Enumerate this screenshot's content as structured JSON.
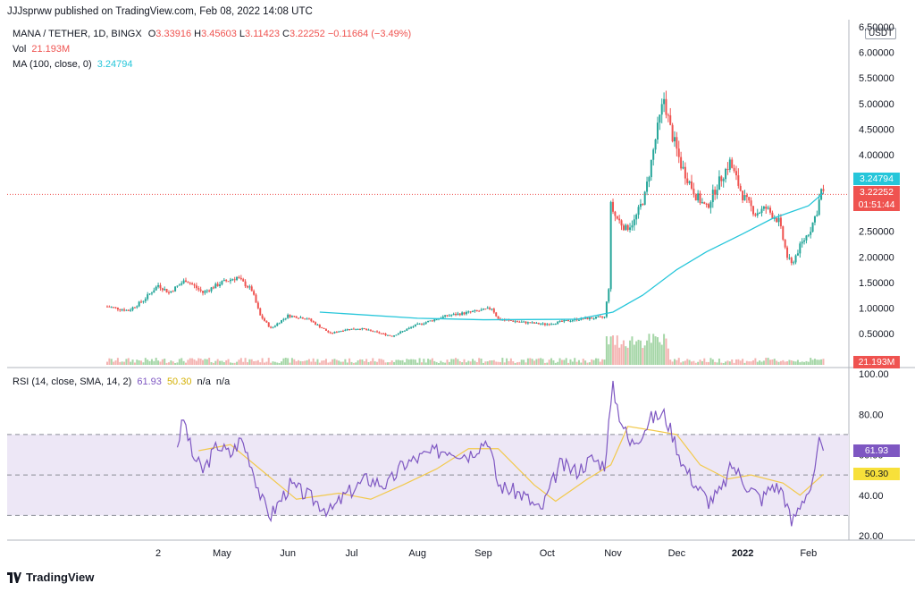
{
  "header": {
    "published": "JJJsprww published on TradingView.com, Feb 08, 2022 14:08 UTC"
  },
  "symbol": {
    "pair": "MANA / TETHER, 1D, BINGX",
    "o_label": "O",
    "o": "3.33916",
    "h_label": "H",
    "h": "3.45603",
    "l_label": "L",
    "l": "3.11423",
    "c_label": "C",
    "c": "3.22252",
    "change": "−0.11664 (−3.49%)"
  },
  "volume": {
    "label": "Vol",
    "value": "21.193M"
  },
  "ma": {
    "label": "MA (100, close, 0)",
    "value": "3.24794"
  },
  "rsi": {
    "label": "RSI (14, close, SMA, 14, 2)",
    "value": "61.93",
    "ma_value": "50.30",
    "na1": "n/a",
    "na2": "n/a"
  },
  "currency": "USDT",
  "price_boxes": {
    "ma": "3.24794",
    "last": "3.22252",
    "countdown": "01:51:44",
    "volume": "21.193M",
    "rsi": "61.93",
    "rsi_ma": "50.30"
  },
  "footer": {
    "brand": "TradingView"
  },
  "colors": {
    "up": "#26a69a",
    "down": "#ef5350",
    "ma": "#26c6da",
    "rsi": "#7e57c2",
    "rsi_ma": "#f2c94c",
    "band": "#ede7f6"
  },
  "chart_data": [
    {
      "type": "candlestick",
      "title": "MANA / TETHER, 1D, BINGX",
      "y_ticks": [
        "0.50000",
        "1.00000",
        "1.50000",
        "2.00000",
        "2.50000",
        "3.00000",
        "3.50000",
        "4.00000",
        "4.50000",
        "5.00000",
        "5.50000",
        "6.00000",
        "6.50000"
      ],
      "y_tick_values": [
        0.5,
        1,
        1.5,
        2,
        2.5,
        3,
        3.5,
        4,
        4.5,
        5,
        5.5,
        6,
        6.5
      ],
      "ylim": [
        0.3,
        6.5
      ],
      "x_ticks": [
        "2",
        "May",
        "Jun",
        "Jul",
        "Aug",
        "Sep",
        "Oct",
        "Nov",
        "Dec",
        "2022",
        "Feb"
      ],
      "x_tick_dates": [
        "2021-04-01",
        "2021-05-01",
        "2021-06-01",
        "2021-07-01",
        "2021-08-01",
        "2021-09-01",
        "2021-10-01",
        "2021-11-01",
        "2021-12-01",
        "2022-01-01",
        "2022-02-01"
      ],
      "x_range": [
        "2021-03-08",
        "2022-02-20"
      ],
      "close_path": [
        {
          "date": "2021-03-08",
          "close": 1.03
        },
        {
          "date": "2021-03-18",
          "close": 0.95
        },
        {
          "date": "2021-03-25",
          "close": 1.15
        },
        {
          "date": "2021-04-01",
          "close": 1.45
        },
        {
          "date": "2021-04-06",
          "close": 1.3
        },
        {
          "date": "2021-04-14",
          "close": 1.55
        },
        {
          "date": "2021-04-22",
          "close": 1.3
        },
        {
          "date": "2021-05-01",
          "close": 1.5
        },
        {
          "date": "2021-05-08",
          "close": 1.6
        },
        {
          "date": "2021-05-15",
          "close": 1.35
        },
        {
          "date": "2021-05-19",
          "close": 0.85
        },
        {
          "date": "2021-05-24",
          "close": 0.6
        },
        {
          "date": "2021-06-01",
          "close": 0.85
        },
        {
          "date": "2021-06-10",
          "close": 0.8
        },
        {
          "date": "2021-06-21",
          "close": 0.5
        },
        {
          "date": "2021-06-28",
          "close": 0.58
        },
        {
          "date": "2021-07-05",
          "close": 0.6
        },
        {
          "date": "2021-07-20",
          "close": 0.45
        },
        {
          "date": "2021-07-31",
          "close": 0.66
        },
        {
          "date": "2021-08-15",
          "close": 0.85
        },
        {
          "date": "2021-08-31",
          "close": 0.95
        },
        {
          "date": "2021-09-05",
          "close": 1.0
        },
        {
          "date": "2021-09-08",
          "close": 0.78
        },
        {
          "date": "2021-09-20",
          "close": 0.72
        },
        {
          "date": "2021-09-30",
          "close": 0.68
        },
        {
          "date": "2021-10-15",
          "close": 0.78
        },
        {
          "date": "2021-10-28",
          "close": 0.82
        },
        {
          "date": "2021-10-30",
          "close": 1.4
        },
        {
          "date": "2021-10-31",
          "close": 3.0
        },
        {
          "date": "2021-11-02",
          "close": 2.8
        },
        {
          "date": "2021-11-07",
          "close": 2.55
        },
        {
          "date": "2021-11-11",
          "close": 2.7
        },
        {
          "date": "2021-11-16",
          "close": 3.2
        },
        {
          "date": "2021-11-21",
          "close": 4.3
        },
        {
          "date": "2021-11-25",
          "close": 5.1
        },
        {
          "date": "2021-11-28",
          "close": 4.5
        },
        {
          "date": "2021-12-03",
          "close": 3.8
        },
        {
          "date": "2021-12-10",
          "close": 3.2
        },
        {
          "date": "2021-12-15",
          "close": 2.95
        },
        {
          "date": "2021-12-20",
          "close": 3.4
        },
        {
          "date": "2021-12-26",
          "close": 3.85
        },
        {
          "date": "2022-01-01",
          "close": 3.2
        },
        {
          "date": "2022-01-07",
          "close": 2.85
        },
        {
          "date": "2022-01-12",
          "close": 2.95
        },
        {
          "date": "2022-01-18",
          "close": 2.7
        },
        {
          "date": "2022-01-22",
          "close": 2.0
        },
        {
          "date": "2022-01-24",
          "close": 1.85
        },
        {
          "date": "2022-01-28",
          "close": 2.2
        },
        {
          "date": "2022-02-02",
          "close": 2.55
        },
        {
          "date": "2022-02-05",
          "close": 2.9
        },
        {
          "date": "2022-02-07",
          "close": 3.3
        },
        {
          "date": "2022-02-08",
          "close": 3.22
        }
      ],
      "ma100": [
        {
          "date": "2021-06-16",
          "value": 0.92
        },
        {
          "date": "2021-08-01",
          "value": 0.8
        },
        {
          "date": "2021-09-01",
          "value": 0.77
        },
        {
          "date": "2021-10-15",
          "value": 0.78
        },
        {
          "date": "2021-11-01",
          "value": 0.92
        },
        {
          "date": "2021-11-15",
          "value": 1.25
        },
        {
          "date": "2021-12-01",
          "value": 1.75
        },
        {
          "date": "2021-12-15",
          "value": 2.1
        },
        {
          "date": "2022-01-01",
          "value": 2.45
        },
        {
          "date": "2022-01-15",
          "value": 2.75
        },
        {
          "date": "2022-02-01",
          "value": 3.0
        },
        {
          "date": "2022-02-08",
          "value": 3.25
        }
      ],
      "last_price": 3.22252,
      "grid": false
    },
    {
      "type": "line",
      "title": "RSI (14, close, SMA, 14, 2)",
      "y_ticks": [
        "20.00",
        "40.00",
        "60.00",
        "80.00",
        "100.00"
      ],
      "y_tick_values": [
        20,
        40,
        60,
        80,
        100
      ],
      "ylim": [
        17,
        101
      ],
      "band": [
        30,
        70
      ],
      "mid": 50,
      "series": [
        {
          "name": "RSI",
          "points": [
            {
              "date": "2021-04-10",
              "value": 65
            },
            {
              "date": "2021-04-13",
              "value": 78
            },
            {
              "date": "2021-04-17",
              "value": 60
            },
            {
              "date": "2021-04-22",
              "value": 52
            },
            {
              "date": "2021-04-29",
              "value": 65
            },
            {
              "date": "2021-05-05",
              "value": 60
            },
            {
              "date": "2021-05-10",
              "value": 68
            },
            {
              "date": "2021-05-14",
              "value": 58
            },
            {
              "date": "2021-05-20",
              "value": 37
            },
            {
              "date": "2021-05-24",
              "value": 30
            },
            {
              "date": "2021-06-02",
              "value": 45
            },
            {
              "date": "2021-06-10",
              "value": 40
            },
            {
              "date": "2021-06-21",
              "value": 32
            },
            {
              "date": "2021-06-28",
              "value": 40
            },
            {
              "date": "2021-07-08",
              "value": 48
            },
            {
              "date": "2021-07-18",
              "value": 45
            },
            {
              "date": "2021-07-25",
              "value": 55
            },
            {
              "date": "2021-08-05",
              "value": 60
            },
            {
              "date": "2021-08-15",
              "value": 63
            },
            {
              "date": "2021-08-25",
              "value": 60
            },
            {
              "date": "2021-09-03",
              "value": 68
            },
            {
              "date": "2021-09-08",
              "value": 45
            },
            {
              "date": "2021-09-20",
              "value": 40
            },
            {
              "date": "2021-09-28",
              "value": 32
            },
            {
              "date": "2021-10-07",
              "value": 55
            },
            {
              "date": "2021-10-15",
              "value": 52
            },
            {
              "date": "2021-10-22",
              "value": 58
            },
            {
              "date": "2021-10-28",
              "value": 55
            },
            {
              "date": "2021-10-30",
              "value": 75
            },
            {
              "date": "2021-11-01",
              "value": 93
            },
            {
              "date": "2021-11-04",
              "value": 80
            },
            {
              "date": "2021-11-09",
              "value": 65
            },
            {
              "date": "2021-11-14",
              "value": 70
            },
            {
              "date": "2021-11-19",
              "value": 78
            },
            {
              "date": "2021-11-25",
              "value": 80
            },
            {
              "date": "2021-11-29",
              "value": 70
            },
            {
              "date": "2021-12-04",
              "value": 55
            },
            {
              "date": "2021-12-10",
              "value": 45
            },
            {
              "date": "2021-12-16",
              "value": 37
            },
            {
              "date": "2021-12-22",
              "value": 42
            },
            {
              "date": "2021-12-27",
              "value": 55
            },
            {
              "date": "2022-01-03",
              "value": 45
            },
            {
              "date": "2022-01-10",
              "value": 38
            },
            {
              "date": "2022-01-15",
              "value": 45
            },
            {
              "date": "2022-01-20",
              "value": 42
            },
            {
              "date": "2022-01-24",
              "value": 26
            },
            {
              "date": "2022-01-29",
              "value": 38
            },
            {
              "date": "2022-02-03",
              "value": 45
            },
            {
              "date": "2022-02-06",
              "value": 65
            },
            {
              "date": "2022-02-08",
              "value": 62
            }
          ]
        },
        {
          "name": "RSI-based MA",
          "points": [
            {
              "date": "2021-04-20",
              "value": 62
            },
            {
              "date": "2021-05-05",
              "value": 65
            },
            {
              "date": "2021-05-20",
              "value": 52
            },
            {
              "date": "2021-06-05",
              "value": 38
            },
            {
              "date": "2021-06-25",
              "value": 41
            },
            {
              "date": "2021-07-10",
              "value": 38
            },
            {
              "date": "2021-07-25",
              "value": 45
            },
            {
              "date": "2021-08-10",
              "value": 53
            },
            {
              "date": "2021-08-25",
              "value": 63
            },
            {
              "date": "2021-09-08",
              "value": 63
            },
            {
              "date": "2021-09-25",
              "value": 45
            },
            {
              "date": "2021-10-05",
              "value": 37
            },
            {
              "date": "2021-10-20",
              "value": 48
            },
            {
              "date": "2021-10-31",
              "value": 55
            },
            {
              "date": "2021-11-08",
              "value": 74
            },
            {
              "date": "2021-11-20",
              "value": 72
            },
            {
              "date": "2021-12-01",
              "value": 70
            },
            {
              "date": "2021-12-12",
              "value": 55
            },
            {
              "date": "2021-12-25",
              "value": 48
            },
            {
              "date": "2022-01-05",
              "value": 50
            },
            {
              "date": "2022-01-20",
              "value": 46
            },
            {
              "date": "2022-01-28",
              "value": 40
            },
            {
              "date": "2022-02-08",
              "value": 50.3
            }
          ]
        }
      ]
    }
  ]
}
